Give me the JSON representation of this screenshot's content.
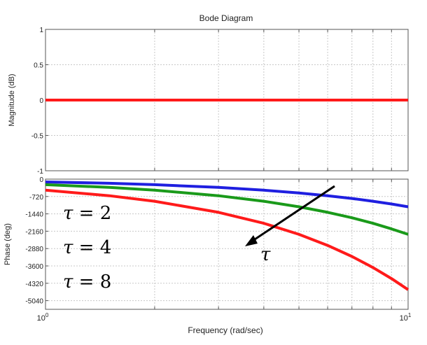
{
  "chart_data": [
    {
      "type": "line",
      "title": "Bode Diagram",
      "ylabel": "Magnitude (dB)",
      "xlabel": "",
      "xscale": "log",
      "xlim": [
        1,
        10
      ],
      "ylim": [
        -1,
        1
      ],
      "yticks": [
        {
          "value": 1,
          "label": "1"
        },
        {
          "value": 0.5,
          "label": "0.5"
        },
        {
          "value": 0,
          "label": "0"
        },
        {
          "value": -0.5,
          "label": "-0.5"
        },
        {
          "value": -1,
          "label": "-1"
        }
      ],
      "grid": true,
      "series": [
        {
          "name": "",
          "color": "#ff1a1a",
          "x": [
            1,
            10
          ],
          "y": [
            0,
            0
          ]
        }
      ]
    },
    {
      "type": "line",
      "ylabel": "Phase (deg)",
      "xlabel": "Frequency  (rad/sec)",
      "xscale": "log",
      "xlim": [
        1,
        10
      ],
      "ylim": [
        -5400,
        0
      ],
      "xticks": [
        {
          "value": 1,
          "base": "10",
          "exp": "0"
        },
        {
          "value": 10,
          "base": "10",
          "exp": "1"
        }
      ],
      "yticks": [
        {
          "value": 0,
          "label": "0"
        },
        {
          "value": -720,
          "label": "-720"
        },
        {
          "value": -1440,
          "label": "-1440"
        },
        {
          "value": -2160,
          "label": "-2160"
        },
        {
          "value": -2880,
          "label": "-2880"
        },
        {
          "value": -3600,
          "label": "-3600"
        },
        {
          "value": -4320,
          "label": "-4320"
        },
        {
          "value": -5040,
          "label": "-5040"
        }
      ],
      "grid": true,
      "series": [
        {
          "name": "",
          "color": "#1f1fe0",
          "x": [
            1,
            1.5,
            2,
            3,
            4,
            5,
            6,
            7,
            8,
            9,
            10
          ],
          "y": [
            -115,
            -172,
            -229,
            -344,
            -458,
            -573,
            -688,
            -802,
            -917,
            -1031,
            -1146
          ]
        },
        {
          "name": "",
          "color": "#1a9a1a",
          "x": [
            1,
            1.5,
            2,
            3,
            4,
            5,
            6,
            7,
            8,
            9,
            10
          ],
          "y": [
            -229,
            -344,
            -458,
            -688,
            -917,
            -1146,
            -1375,
            -1604,
            -1833,
            -2063,
            -2292
          ]
        },
        {
          "name": "",
          "color": "#ff1a1a",
          "x": [
            1,
            1.5,
            2,
            3,
            4,
            5,
            6,
            7,
            8,
            9,
            10
          ],
          "y": [
            -458,
            -688,
            -917,
            -1375,
            -1833,
            -2292,
            -2750,
            -3209,
            -3667,
            -4125,
            -4584
          ]
        }
      ],
      "annotations": {
        "legend": [
          {
            "symbol": "τ",
            "eq": " = 2"
          },
          {
            "symbol": "τ",
            "eq": " = 4"
          },
          {
            "symbol": "τ",
            "eq": " = 8"
          }
        ],
        "arrow_label": "τ",
        "arrow_color": "#000000"
      }
    }
  ]
}
